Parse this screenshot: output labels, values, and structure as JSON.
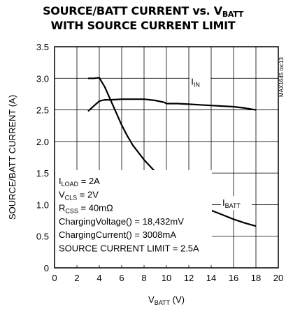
{
  "title_line1": {
    "main": "SOURCE/BATT CURRENT vs. V",
    "sub": "BATT"
  },
  "title_line2": "WITH SOURCE CURRENT LIMIT",
  "figure_id": "MAX1645 toc13",
  "chart_data": {
    "type": "line",
    "xlabel": {
      "main": "V",
      "sub": "BATT",
      "suffix": " (V)"
    },
    "ylabel": "SOURCE/BATT CURRENT (A)",
    "xlim": [
      0,
      20
    ],
    "ylim": [
      0,
      3.5
    ],
    "xticks": [
      "0",
      "2",
      "4",
      "6",
      "8",
      "10",
      "12",
      "14",
      "16",
      "18",
      "20"
    ],
    "yticks": [
      "0",
      "0.5",
      "1.0",
      "1.5",
      "2.0",
      "2.5",
      "3.0",
      "3.5"
    ],
    "grid": true,
    "series": [
      {
        "name": "I_IN",
        "label": {
          "main": "I",
          "sub": "IN"
        },
        "x": [
          3,
          3.5,
          4,
          4.5,
          5,
          6,
          7,
          8,
          9,
          9.8,
          10,
          11,
          12,
          13,
          14,
          15,
          16,
          17,
          18
        ],
        "y": [
          2.48,
          2.56,
          2.64,
          2.66,
          2.66,
          2.67,
          2.67,
          2.67,
          2.65,
          2.62,
          2.6,
          2.6,
          2.59,
          2.58,
          2.57,
          2.56,
          2.55,
          2.53,
          2.5
        ]
      },
      {
        "name": "I_BATT",
        "label": {
          "main": "I",
          "sub": "BATT"
        },
        "x": [
          3,
          3.5,
          4,
          4.5,
          5,
          5.5,
          6,
          6.5,
          7,
          8,
          9,
          10,
          11,
          12,
          13,
          14,
          15,
          16,
          17,
          18
        ],
        "y": [
          3.0,
          3.0,
          3.01,
          2.86,
          2.66,
          2.46,
          2.26,
          2.09,
          1.94,
          1.71,
          1.52,
          1.36,
          1.22,
          1.1,
          1.0,
          0.91,
          0.84,
          0.77,
          0.71,
          0.66
        ]
      }
    ],
    "annotations": [
      {
        "main": "I",
        "sub": "LOAD",
        "rest": " = 2A"
      },
      {
        "main": "V",
        "sub": "CLS",
        "rest": " = 2V"
      },
      {
        "main": "R",
        "sub": "CSS",
        "rest": " = 40mΩ"
      },
      {
        "main": "ChargingVoltage() = 18,432mV",
        "sub": "",
        "rest": ""
      },
      {
        "main": "ChargingCurrent() = 3008mA",
        "sub": "",
        "rest": ""
      },
      {
        "main": "SOURCE CURRENT LIMIT = 2.5A",
        "sub": "",
        "rest": ""
      }
    ]
  }
}
